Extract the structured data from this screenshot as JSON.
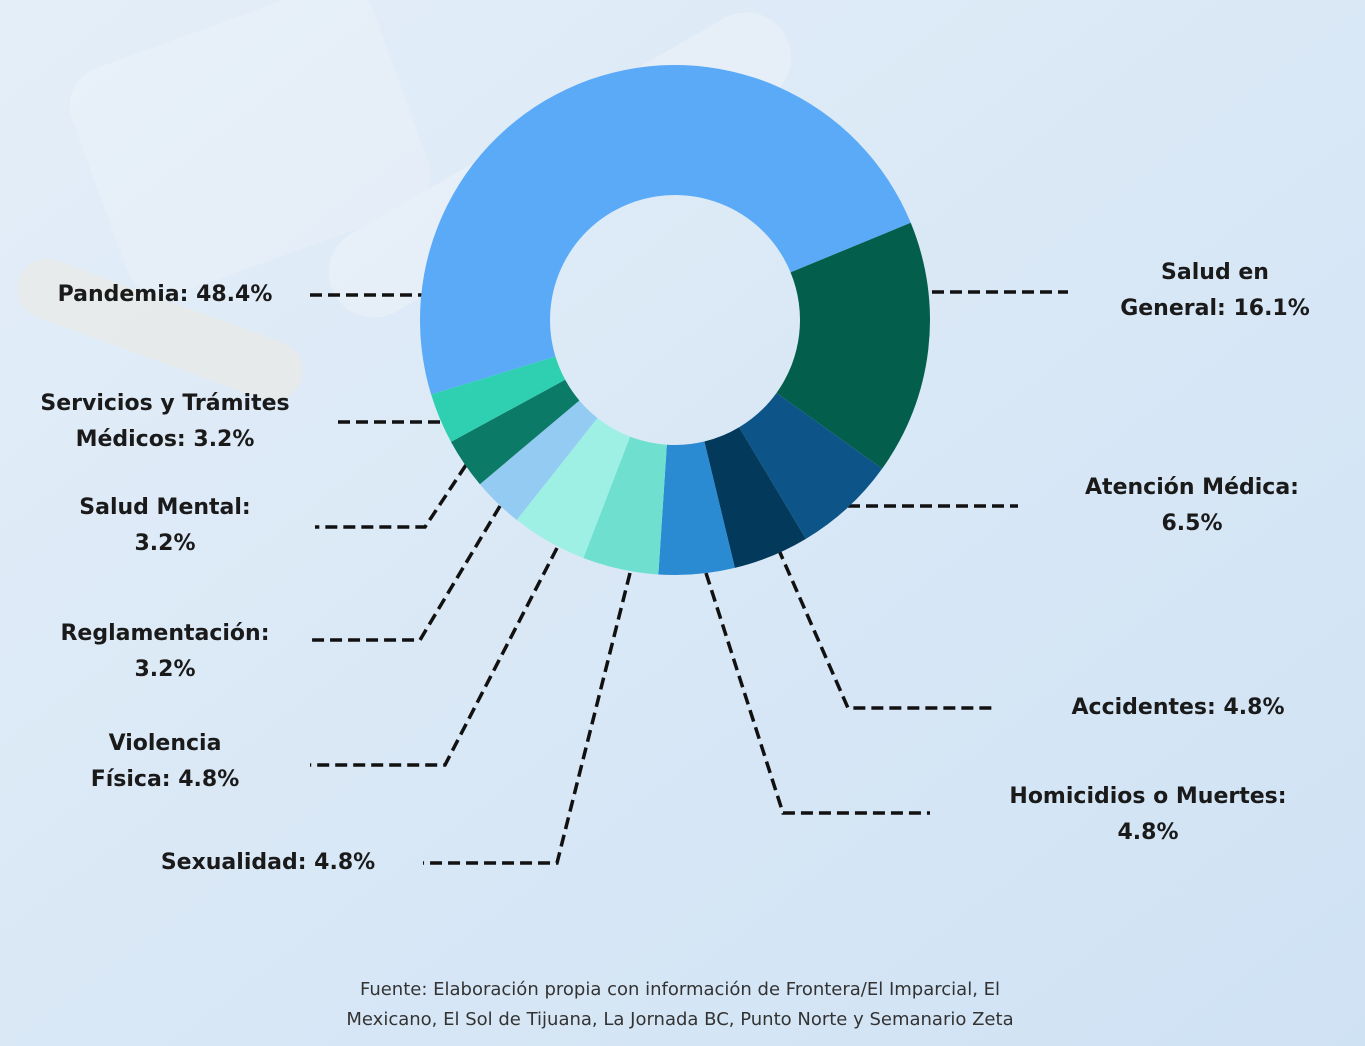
{
  "chart_data": {
    "type": "donut",
    "labels": [
      [
        "Pandemia: 48.4%"
      ],
      [
        "Salud en",
        "General: 16.1%"
      ],
      [
        "Atención Médica:",
        "6.5%"
      ],
      [
        "Accidentes: 4.8%"
      ],
      [
        "Homicidios o Muertes:",
        "4.8%"
      ],
      [
        "Sexualidad: 4.8%"
      ],
      [
        "Violencia",
        "Física: 4.8%"
      ],
      [
        "Reglamentación:",
        "3.2%"
      ],
      [
        "Salud Mental:",
        "3.2%"
      ],
      [
        "Servicios y Trámites",
        "Médicos: 3.2%"
      ]
    ],
    "values": [
      48.4,
      16.1,
      6.5,
      4.8,
      4.8,
      4.8,
      4.8,
      3.2,
      3.2,
      3.2
    ],
    "colors": [
      "#5aaaf7",
      "#045e4c",
      "#0d5589",
      "#033a5c",
      "#2a8ad2",
      "#6fe0d0",
      "#9ff0e4",
      "#93cbf2",
      "#0b7a66",
      "#2fcfb2"
    ],
    "source": [
      "Fuente: Elaboración propia con información de Frontera/El Imparcial, El",
      "Mexicano, El Sol de Tijuana, La Jornada BC, Punto Norte y Semanario Zeta"
    ]
  }
}
